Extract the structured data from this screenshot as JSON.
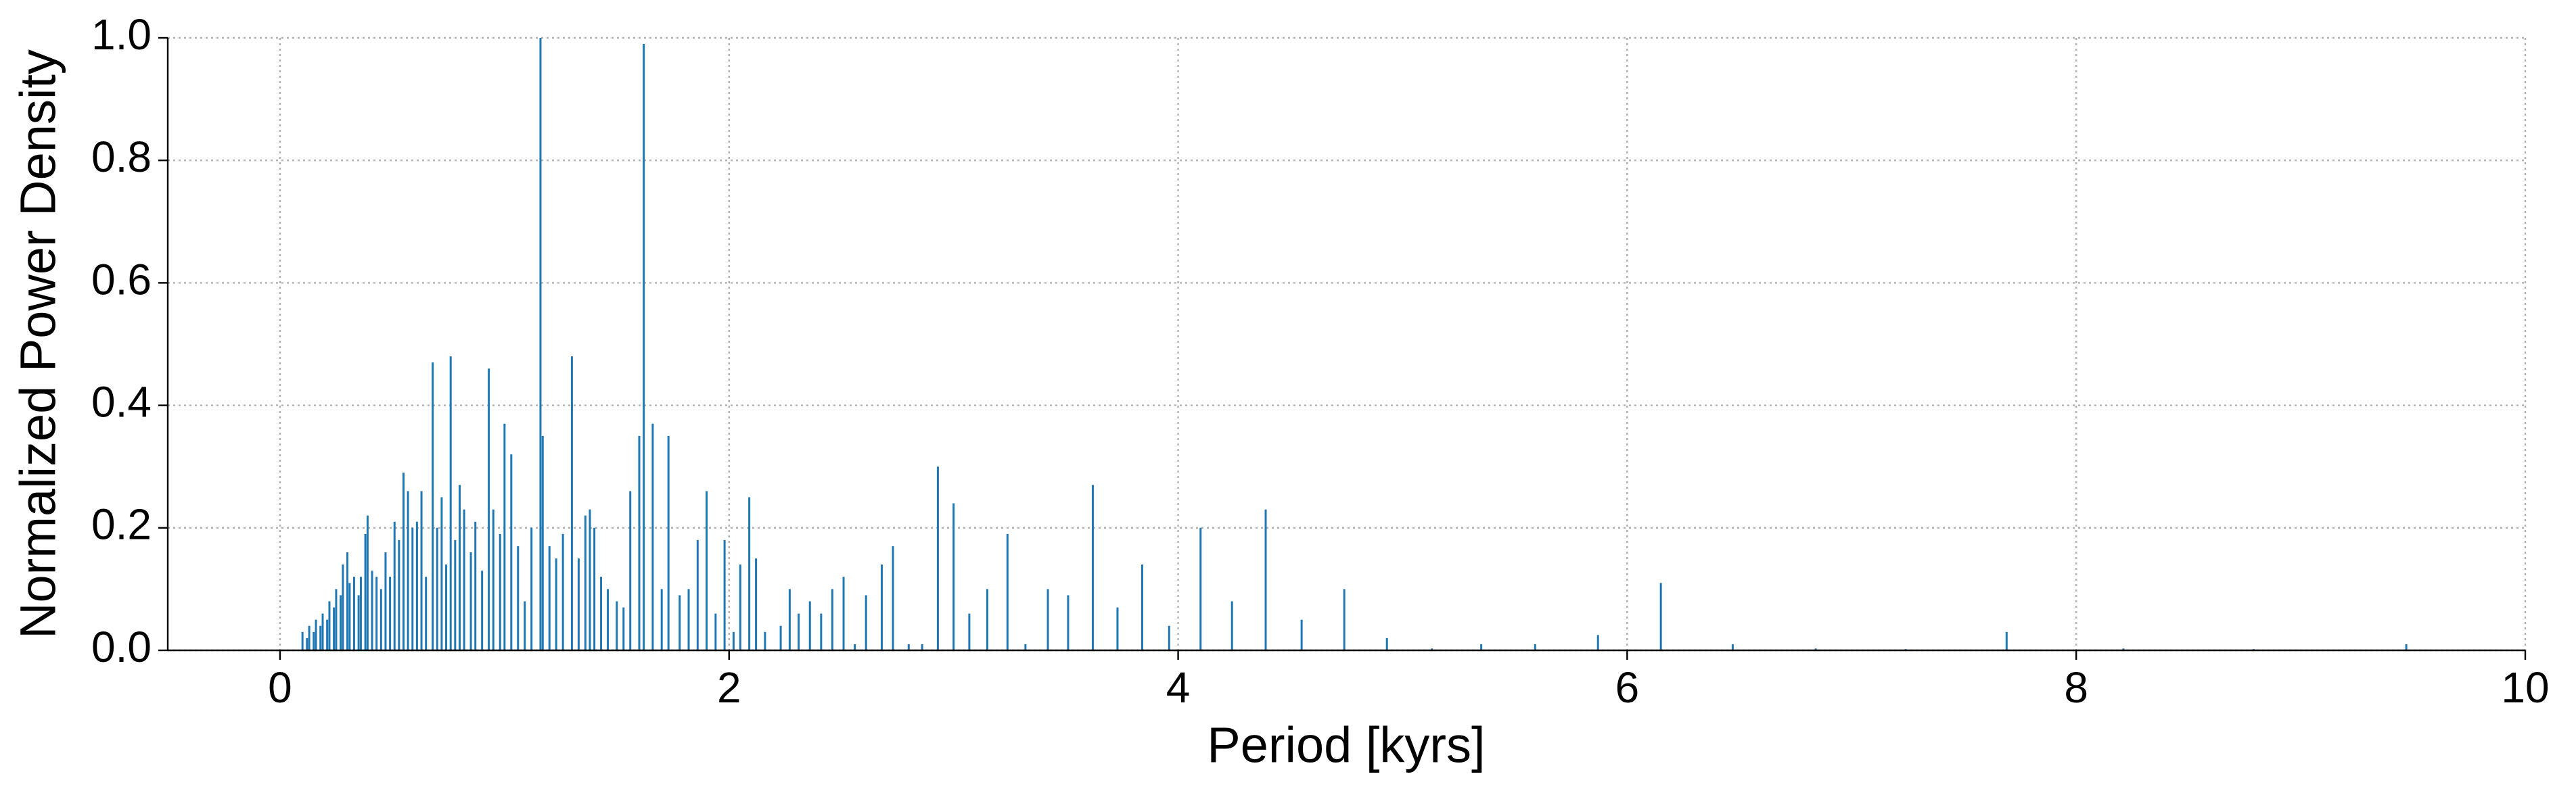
{
  "chart_data": {
    "type": "stem",
    "xlabel": "Period [kyrs]",
    "ylabel": "Normalized Power Density",
    "color": "#1f77b4",
    "grid": true,
    "xlim": [
      -0.5,
      10
    ],
    "ylim": [
      0,
      1
    ],
    "xticks": [
      0,
      2,
      4,
      6,
      8,
      10
    ],
    "yticks": [
      {
        "value": 0,
        "label": "0.0"
      },
      0.2,
      0.4,
      0.6,
      0.8,
      {
        "value": 1,
        "label": "1.0"
      }
    ],
    "x": [
      0.1,
      0.12,
      0.13,
      0.15,
      0.16,
      0.18,
      0.19,
      0.21,
      0.22,
      0.24,
      0.25,
      0.27,
      0.28,
      0.3,
      0.31,
      0.33,
      0.35,
      0.36,
      0.38,
      0.39,
      0.41,
      0.43,
      0.45,
      0.47,
      0.49,
      0.51,
      0.53,
      0.55,
      0.57,
      0.59,
      0.61,
      0.63,
      0.65,
      0.68,
      0.7,
      0.72,
      0.74,
      0.76,
      0.78,
      0.8,
      0.82,
      0.85,
      0.87,
      0.9,
      0.93,
      0.95,
      0.98,
      1.0,
      1.03,
      1.06,
      1.09,
      1.12,
      1.16,
      1.17,
      1.2,
      1.23,
      1.26,
      1.3,
      1.33,
      1.36,
      1.38,
      1.4,
      1.43,
      1.46,
      1.5,
      1.53,
      1.56,
      1.6,
      1.62,
      1.66,
      1.7,
      1.73,
      1.78,
      1.82,
      1.86,
      1.9,
      1.94,
      1.98,
      2.02,
      2.05,
      2.09,
      2.12,
      2.16,
      2.23,
      2.27,
      2.31,
      2.36,
      2.41,
      2.46,
      2.51,
      2.56,
      2.61,
      2.68,
      2.73,
      2.8,
      2.86,
      2.93,
      3.0,
      3.07,
      3.15,
      3.24,
      3.32,
      3.42,
      3.51,
      3.62,
      3.73,
      3.84,
      3.96,
      4.1,
      4.24,
      4.39,
      4.55,
      4.74,
      4.93,
      5.13,
      5.35,
      5.59,
      5.87,
      6.15,
      6.47,
      6.84,
      7.24,
      7.69,
      8.21,
      8.79,
      9.47
    ],
    "values": [
      0.03,
      0.02,
      0.04,
      0.03,
      0.05,
      0.04,
      0.06,
      0.05,
      0.08,
      0.07,
      0.1,
      0.09,
      0.14,
      0.16,
      0.11,
      0.12,
      0.09,
      0.12,
      0.19,
      0.22,
      0.13,
      0.12,
      0.1,
      0.16,
      0.12,
      0.21,
      0.18,
      0.29,
      0.26,
      0.2,
      0.21,
      0.26,
      0.12,
      0.47,
      0.2,
      0.25,
      0.14,
      0.48,
      0.18,
      0.27,
      0.23,
      0.16,
      0.21,
      0.13,
      0.46,
      0.23,
      0.19,
      0.37,
      0.32,
      0.17,
      0.08,
      0.2,
      1.0,
      0.35,
      0.17,
      0.15,
      0.19,
      0.48,
      0.15,
      0.22,
      0.23,
      0.2,
      0.12,
      0.1,
      0.08,
      0.07,
      0.26,
      0.35,
      0.99,
      0.37,
      0.1,
      0.35,
      0.09,
      0.1,
      0.18,
      0.26,
      0.06,
      0.18,
      0.03,
      0.14,
      0.25,
      0.15,
      0.03,
      0.04,
      0.1,
      0.06,
      0.08,
      0.06,
      0.1,
      0.12,
      0.01,
      0.09,
      0.14,
      0.17,
      0.01,
      0.01,
      0.3,
      0.24,
      0.06,
      0.1,
      0.19,
      0.01,
      0.1,
      0.09,
      0.27,
      0.07,
      0.14,
      0.04,
      0.2,
      0.08,
      0.23,
      0.05,
      0.1,
      0.02,
      0.003,
      0.01,
      0.01,
      0.025,
      0.11,
      0.01,
      0.003,
      0.002,
      0.03,
      0.003,
      0.002,
      0.01
    ]
  }
}
